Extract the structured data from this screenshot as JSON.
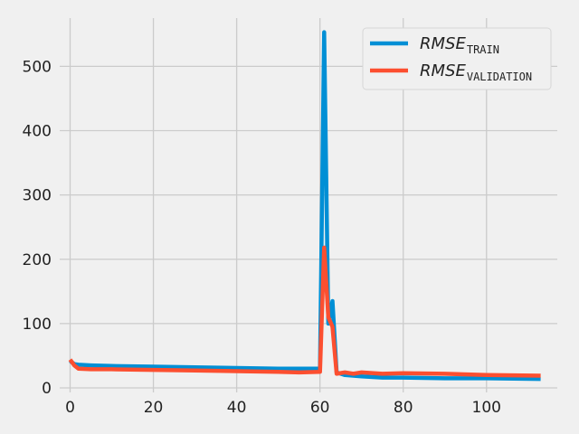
{
  "chart_data": {
    "type": "line",
    "title": "",
    "xlabel": "",
    "ylabel": "",
    "xlim": [
      -2.5,
      117
    ],
    "ylim": [
      -7,
      575
    ],
    "x_ticks": [
      0,
      20,
      40,
      60,
      80,
      100
    ],
    "y_ticks": [
      0,
      100,
      200,
      300,
      400,
      500
    ],
    "grid": true,
    "legend_position": "top-right",
    "series": [
      {
        "name_main": "RMSE",
        "name_sub": "TRAIN",
        "color": "#008fd5",
        "x": [
          0,
          1,
          2,
          5,
          10,
          20,
          30,
          40,
          50,
          55,
          60,
          61,
          62,
          63,
          64,
          66,
          68,
          70,
          75,
          80,
          90,
          100,
          113
        ],
        "y": [
          42,
          37,
          36,
          35,
          34,
          33,
          32,
          31,
          30,
          30,
          30,
          553,
          100,
          135,
          24,
          20,
          19,
          18,
          16,
          16,
          15,
          15,
          14
        ]
      },
      {
        "name_main": "RMSE",
        "name_sub": "VALIDATION",
        "color": "#fc4f30",
        "x": [
          0,
          1,
          2,
          5,
          10,
          20,
          30,
          40,
          50,
          55,
          60,
          61,
          62,
          63,
          64,
          66,
          68,
          70,
          75,
          80,
          90,
          100,
          113
        ],
        "y": [
          44,
          35,
          30,
          29,
          29,
          28,
          27,
          26,
          25,
          24,
          25,
          218,
          110,
          95,
          22,
          24,
          22,
          24,
          22,
          23,
          22,
          20,
          19
        ]
      }
    ]
  }
}
